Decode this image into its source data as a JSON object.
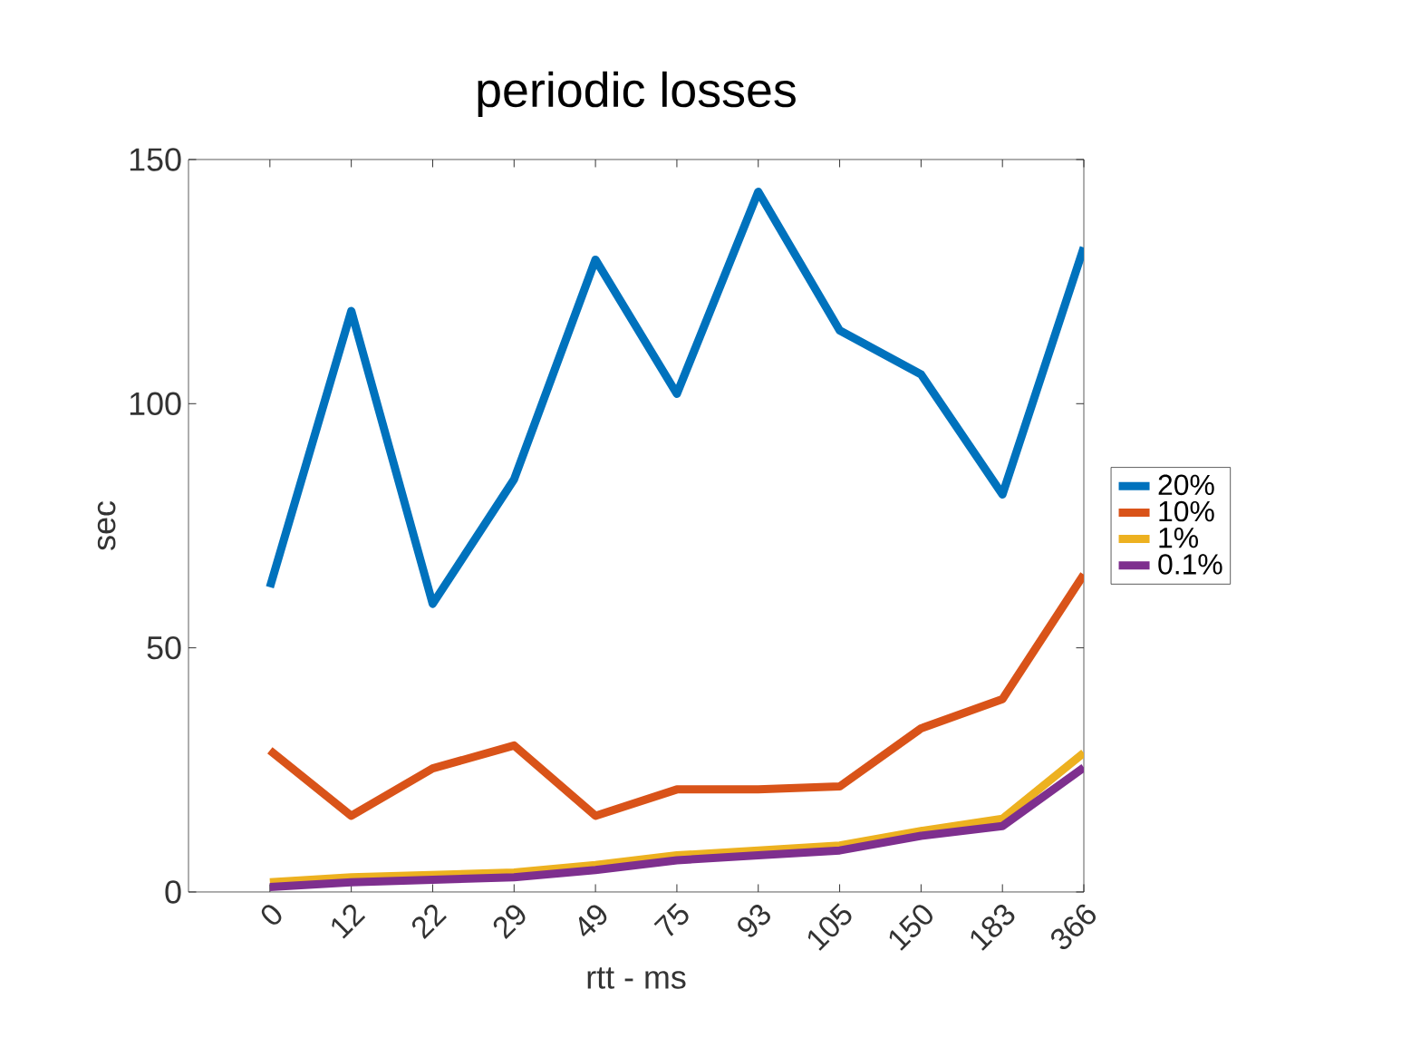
{
  "chart_data": {
    "type": "line",
    "title": "periodic losses",
    "xlabel": "rtt - ms",
    "ylabel": "sec",
    "categories": [
      "0",
      "12",
      "22",
      "29",
      "49",
      "75",
      "93",
      "105",
      "150",
      "183",
      "366"
    ],
    "ylim": [
      0,
      150
    ],
    "yticks": [
      0,
      50,
      100,
      150
    ],
    "grid": false,
    "legend": "right",
    "line_style": "solid",
    "series": [
      {
        "name": "20%",
        "color": "#0072bd",
        "values": [
          62.4,
          119,
          59,
          84.5,
          129.5,
          102,
          143.4,
          115,
          106,
          81.4,
          132
        ]
      },
      {
        "name": "10%",
        "color": "#d95319",
        "values": [
          29,
          15.6,
          25.3,
          30,
          15.6,
          21,
          21,
          21.6,
          33.5,
          39.5,
          65
        ]
      },
      {
        "name": "1%",
        "color": "#edb120",
        "values": [
          2,
          3,
          3.5,
          4,
          5.5,
          7.5,
          8.5,
          9.5,
          12.5,
          15,
          28.5
        ]
      },
      {
        "name": "0.1%",
        "color": "#7e2f8e",
        "values": [
          1,
          2,
          2.5,
          3,
          4.5,
          6.5,
          7.5,
          8.5,
          11.5,
          13.5,
          25.5
        ]
      }
    ]
  }
}
